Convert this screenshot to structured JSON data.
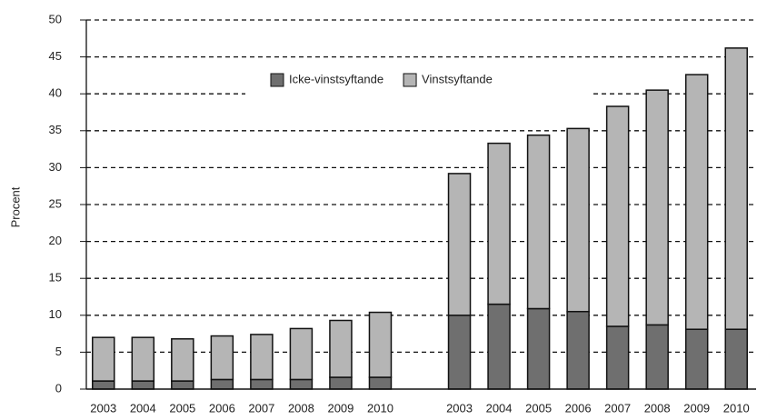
{
  "chart_data": {
    "type": "stacked-bar",
    "y_label": "Procent",
    "categories": [
      "2003",
      "2004",
      "2005",
      "2006",
      "2007",
      "2008",
      "2009",
      "2010",
      null,
      "2003",
      "2004",
      "2005",
      "2006",
      "2007",
      "2008",
      "2009",
      "2010"
    ],
    "series": [
      {
        "name": "Icke-vinstsyftande",
        "color": "#6f6f6f",
        "values": [
          1.1,
          1.1,
          1.1,
          1.3,
          1.3,
          1.3,
          1.6,
          1.6,
          null,
          10.0,
          11.5,
          10.9,
          10.5,
          8.5,
          8.7,
          8.1,
          8.1
        ]
      },
      {
        "name": "Vinstsyftande",
        "color": "#b5b5b5",
        "values": [
          5.9,
          5.9,
          5.7,
          5.9,
          6.1,
          6.9,
          7.7,
          8.8,
          null,
          19.2,
          21.8,
          23.5,
          24.8,
          29.8,
          31.8,
          34.5,
          38.1
        ]
      }
    ],
    "ylim": [
      0,
      50
    ],
    "yticks": [
      0,
      5,
      10,
      15,
      20,
      25,
      30,
      35,
      40,
      45,
      50
    ],
    "grid": true,
    "legend": "top"
  }
}
